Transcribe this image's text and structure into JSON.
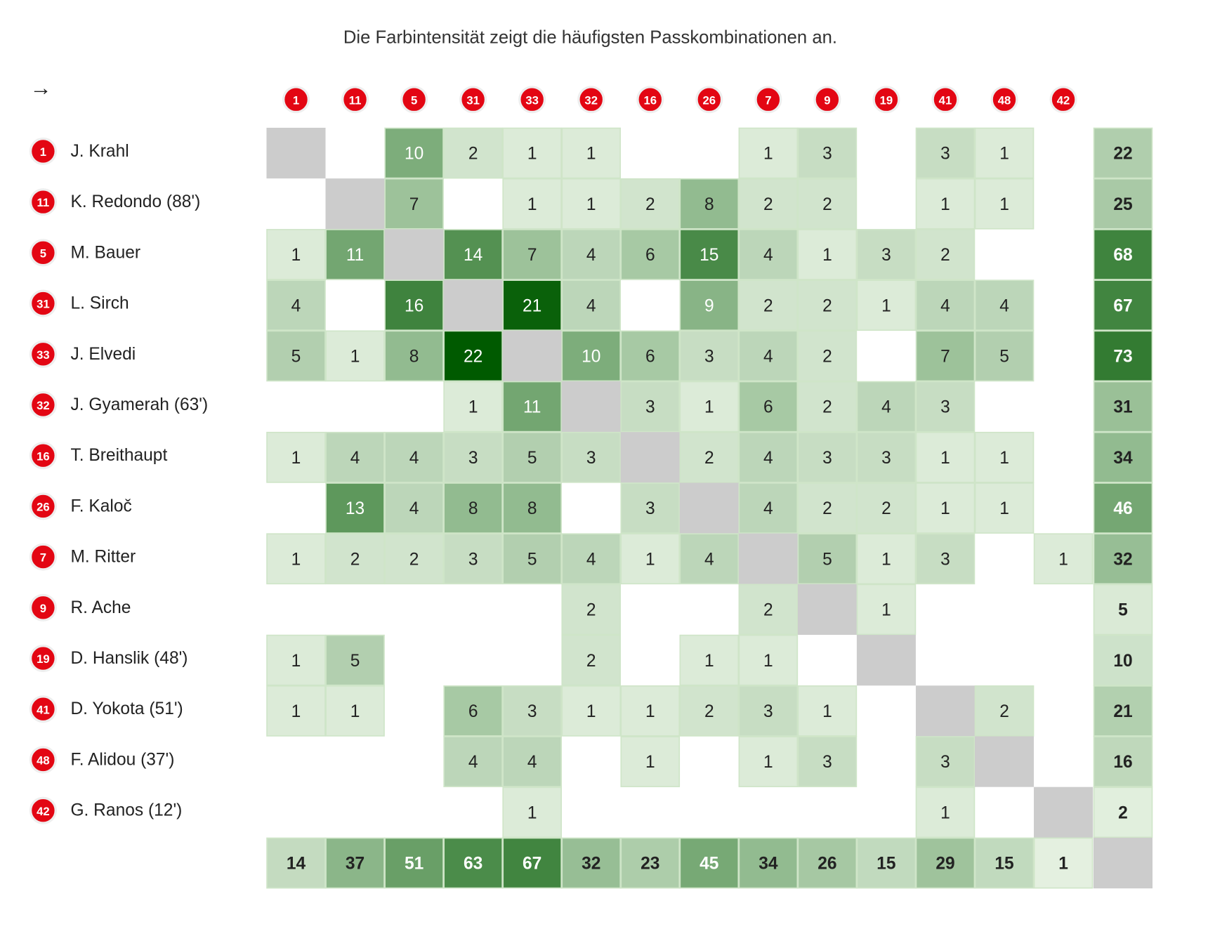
{
  "subtitle": "Die Farbintensität zeigt die häufigsten Passkombinationen an.",
  "arrow": "→",
  "colors": {
    "light": "#e6f2e2",
    "dark": "#005a00",
    "diagonal": "#cccccc",
    "badge": "#e30613",
    "cell_border": "#cfe5c8"
  },
  "players": [
    {
      "number": 1,
      "name": "J. Krahl",
      "passes": [
        null,
        null,
        10,
        2,
        1,
        1,
        null,
        null,
        1,
        3,
        null,
        3,
        1,
        null
      ],
      "total": 22
    },
    {
      "number": 11,
      "name": "K. Redondo (88')",
      "passes": [
        null,
        null,
        7,
        null,
        1,
        1,
        2,
        8,
        2,
        2,
        null,
        1,
        1,
        null
      ],
      "total": 25
    },
    {
      "number": 5,
      "name": "M. Bauer",
      "passes": [
        1,
        11,
        null,
        14,
        7,
        4,
        6,
        15,
        4,
        1,
        3,
        2,
        null,
        null
      ],
      "total": 68
    },
    {
      "number": 31,
      "name": "L. Sirch",
      "passes": [
        4,
        null,
        16,
        null,
        21,
        4,
        null,
        9,
        2,
        2,
        1,
        4,
        4,
        null
      ],
      "total": 67
    },
    {
      "number": 33,
      "name": "J. Elvedi",
      "passes": [
        5,
        1,
        8,
        22,
        null,
        10,
        6,
        3,
        4,
        2,
        null,
        7,
        5,
        null
      ],
      "total": 73
    },
    {
      "number": 32,
      "name": "J. Gyamerah (63')",
      "passes": [
        null,
        null,
        null,
        1,
        11,
        null,
        3,
        1,
        6,
        2,
        4,
        3,
        null,
        null
      ],
      "total": 31
    },
    {
      "number": 16,
      "name": "T. Breithaupt",
      "passes": [
        1,
        4,
        4,
        3,
        5,
        3,
        null,
        2,
        4,
        3,
        3,
        1,
        1,
        null
      ],
      "total": 34
    },
    {
      "number": 26,
      "name": "F. Kaloč",
      "passes": [
        null,
        13,
        4,
        8,
        8,
        null,
        3,
        null,
        4,
        2,
        2,
        1,
        1,
        null
      ],
      "total": 46
    },
    {
      "number": 7,
      "name": "M. Ritter",
      "passes": [
        1,
        2,
        2,
        3,
        5,
        4,
        1,
        4,
        null,
        5,
        1,
        3,
        null,
        1
      ],
      "total": 32
    },
    {
      "number": 9,
      "name": "R. Ache",
      "passes": [
        null,
        null,
        null,
        null,
        null,
        2,
        null,
        null,
        2,
        null,
        1,
        null,
        null,
        null
      ],
      "total": 5
    },
    {
      "number": 19,
      "name": "D. Hanslik (48')",
      "passes": [
        1,
        5,
        null,
        null,
        null,
        2,
        null,
        1,
        1,
        null,
        null,
        null,
        null,
        null
      ],
      "total": 10
    },
    {
      "number": 41,
      "name": "D. Yokota (51')",
      "passes": [
        1,
        1,
        null,
        6,
        3,
        1,
        1,
        2,
        3,
        1,
        null,
        null,
        2,
        null
      ],
      "total": 21
    },
    {
      "number": 48,
      "name": "F. Alidou (37')",
      "passes": [
        null,
        null,
        null,
        4,
        4,
        null,
        1,
        null,
        1,
        3,
        null,
        3,
        null,
        null
      ],
      "total": 16
    },
    {
      "number": 42,
      "name": "G. Ranos (12')",
      "passes": [
        null,
        null,
        null,
        null,
        1,
        null,
        null,
        null,
        null,
        null,
        null,
        1,
        null,
        null
      ],
      "total": 2
    }
  ],
  "column_totals": [
    14,
    37,
    51,
    63,
    67,
    32,
    23,
    45,
    34,
    26,
    15,
    29,
    15,
    1
  ]
}
